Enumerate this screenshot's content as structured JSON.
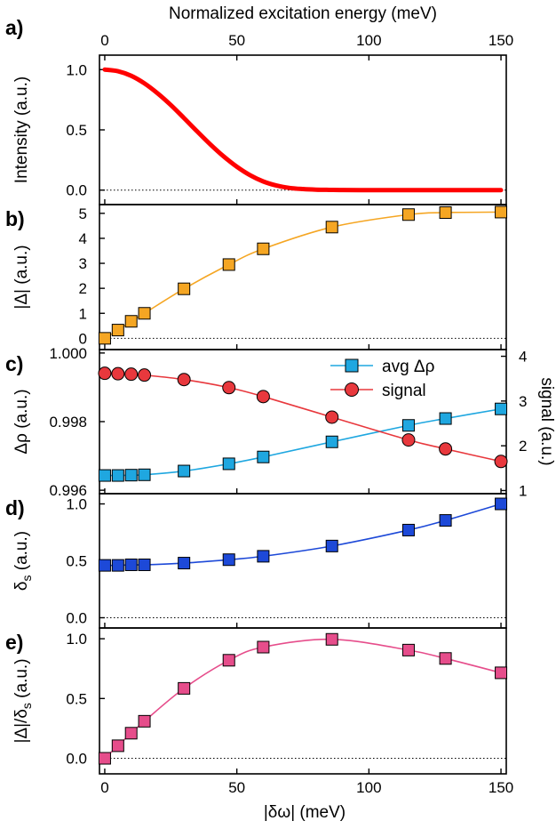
{
  "chart_data": {
    "type": "line",
    "figure": {
      "top_xlabel": "Normalized excitation energy (meV)",
      "top_xticks": [
        "0",
        "50",
        "100",
        "150"
      ],
      "bottom_xlabel": "|δω| (meV)",
      "bottom_xticks": [
        "0",
        "50",
        "100",
        "150"
      ],
      "xlim": [
        -2,
        152
      ]
    },
    "panels": [
      {
        "id": "a",
        "label": "a)",
        "ylabel": "Intensity (a.u.)",
        "ylim": [
          -0.12,
          1.12
        ],
        "yticks": [
          {
            "v": 0,
            "t": "0.0"
          },
          {
            "v": 0.5,
            "t": "0.5"
          },
          {
            "v": 1,
            "t": "1.0"
          }
        ],
        "series": [
          {
            "name": "",
            "color": "#ff0000",
            "marker": "none",
            "width": 5,
            "x": [
              0,
              5,
              10,
              15,
              20,
              25,
              30,
              35,
              40,
              45,
              50,
              55,
              60,
              65,
              70,
              75,
              80,
              85,
              90,
              100,
              110,
              120,
              130,
              140,
              150
            ],
            "y": [
              1.0,
              0.987,
              0.949,
              0.886,
              0.803,
              0.706,
              0.598,
              0.487,
              0.379,
              0.28,
              0.194,
              0.124,
              0.072,
              0.038,
              0.018,
              0.009,
              0.004,
              0.002,
              0.001,
              0.0,
              0.0,
              0.0,
              0.0,
              0.0,
              0.0
            ]
          }
        ]
      },
      {
        "id": "b",
        "label": "b)",
        "ylabel": "|Δ| (a.u.)",
        "ylim": [
          -0.45,
          5.35
        ],
        "yticks": [
          {
            "v": 0,
            "t": "0"
          },
          {
            "v": 1,
            "t": "1"
          },
          {
            "v": 2,
            "t": "2"
          },
          {
            "v": 3,
            "t": "3"
          },
          {
            "v": 4,
            "t": "4"
          },
          {
            "v": 5,
            "t": "5"
          }
        ],
        "series": [
          {
            "name": "",
            "color": "#f5a623",
            "marker": "square",
            "x": [
              0,
              5,
              10,
              15,
              30,
              47,
              60,
              86,
              115,
              129,
              150
            ],
            "y": [
              0.0,
              0.33,
              0.68,
              1.0,
              1.98,
              2.95,
              3.58,
              4.45,
              4.95,
              5.03,
              5.05
            ]
          }
        ]
      },
      {
        "id": "c",
        "label": "c)",
        "ylabel": "Δρ (a.u.)",
        "ylabel2": "signal (a.u.)",
        "ylim": [
          0.9959,
          1.0001
        ],
        "yticks": [
          {
            "v": 0.996,
            "t": "0.996"
          },
          {
            "v": 0.998,
            "t": "0.998"
          },
          {
            "v": 1.0,
            "t": "1.000"
          }
        ],
        "ylim2": [
          0.93,
          4.15
        ],
        "yticks2": [
          {
            "v": 1,
            "t": "1"
          },
          {
            "v": 2,
            "t": "2"
          },
          {
            "v": 3,
            "t": "3"
          },
          {
            "v": 4,
            "t": "4"
          }
        ],
        "legend": [
          {
            "text": "avg Δρ",
            "color": "#1fa7e0",
            "marker": "square"
          },
          {
            "text": "signal",
            "color": "#e8383d",
            "marker": "circle"
          }
        ],
        "series": [
          {
            "name": "avg Δρ",
            "axis": "left",
            "color": "#1fa7e0",
            "marker": "square",
            "x": [
              0,
              5,
              10,
              15,
              30,
              47,
              60,
              86,
              115,
              129,
              150
            ],
            "y": [
              0.99643,
              0.99643,
              0.99644,
              0.99645,
              0.99656,
              0.99677,
              0.99697,
              0.99741,
              0.99789,
              0.99809,
              0.99837
            ]
          },
          {
            "name": "signal",
            "axis": "right",
            "color": "#e8383d",
            "marker": "circle",
            "x": [
              0,
              5,
              10,
              15,
              30,
              47,
              60,
              86,
              115,
              129,
              150
            ],
            "y": [
              3.62,
              3.61,
              3.6,
              3.58,
              3.48,
              3.3,
              3.1,
              2.64,
              2.13,
              1.93,
              1.65
            ]
          }
        ]
      },
      {
        "id": "d",
        "label": "d)",
        "ylabel": "δs (a.u.)",
        "ylim": [
          -0.09,
          1.09
        ],
        "yticks": [
          {
            "v": 0,
            "t": "0.0"
          },
          {
            "v": 0.5,
            "t": "0.5"
          },
          {
            "v": 1,
            "t": "1.0"
          }
        ],
        "series": [
          {
            "name": "",
            "color": "#1d49d8",
            "marker": "square",
            "x": [
              0,
              5,
              10,
              15,
              30,
              47,
              60,
              86,
              115,
              129,
              150
            ],
            "y": [
              0.46,
              0.46,
              0.465,
              0.465,
              0.48,
              0.51,
              0.54,
              0.63,
              0.77,
              0.855,
              1.0
            ]
          }
        ]
      },
      {
        "id": "e",
        "label": "e)",
        "ylabel": "|Δ|/δs (a.u.)",
        "ylim": [
          -0.13,
          1.09
        ],
        "yticks": [
          {
            "v": 0,
            "t": "0.0"
          },
          {
            "v": 0.5,
            "t": "0.5"
          },
          {
            "v": 1,
            "t": "1.0"
          }
        ],
        "series": [
          {
            "name": "",
            "color": "#e64d8b",
            "marker": "square",
            "x": [
              0,
              5,
              10,
              15,
              30,
              47,
              60,
              86,
              115,
              129,
              150
            ],
            "y": [
              0.0,
              0.105,
              0.21,
              0.31,
              0.585,
              0.82,
              0.93,
              0.995,
              0.905,
              0.835,
              0.715
            ]
          }
        ]
      }
    ]
  }
}
